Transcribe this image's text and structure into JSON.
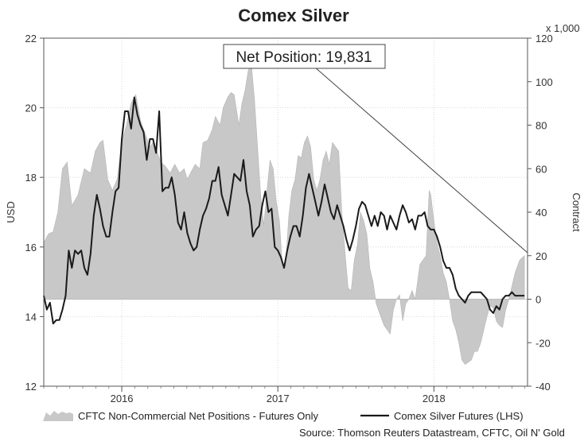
{
  "chart_data": {
    "type": "line",
    "title": "Comex Silver",
    "left_axis": {
      "label": "USD",
      "ylim": [
        12,
        22
      ],
      "ticks": [
        12,
        14,
        16,
        18,
        20,
        22
      ]
    },
    "right_axis": {
      "label": "Contract",
      "unit_label": "x 1,000",
      "ylim": [
        -40,
        120
      ],
      "ticks": [
        -40,
        -20,
        0,
        20,
        40,
        60,
        80,
        100,
        120
      ]
    },
    "x_axis": {
      "range": [
        2015.5,
        2018.6
      ],
      "ticks": [
        {
          "label": "2016",
          "pos": 2016.0
        },
        {
          "label": "2017",
          "pos": 2017.0
        },
        {
          "label": "2018",
          "pos": 2018.0
        }
      ]
    },
    "grid": true,
    "callout": "Net Position: 19,831",
    "series": [
      {
        "name": "CFTC Non-Commercial Net Positions - Futures Only",
        "kind": "area",
        "axis": "right",
        "color": "#c8c8c8",
        "points": [
          [
            2015.5,
            26
          ],
          [
            2015.53,
            30
          ],
          [
            2015.56,
            31
          ],
          [
            2015.59,
            40
          ],
          [
            2015.62,
            60
          ],
          [
            2015.65,
            63
          ],
          [
            2015.68,
            43
          ],
          [
            2015.72,
            48
          ],
          [
            2015.76,
            60
          ],
          [
            2015.8,
            58
          ],
          [
            2015.83,
            68
          ],
          [
            2015.86,
            72
          ],
          [
            2015.88,
            73
          ],
          [
            2015.91,
            55
          ],
          [
            2015.94,
            50
          ],
          [
            2015.97,
            55
          ],
          [
            2016.0,
            72
          ],
          [
            2016.03,
            80
          ],
          [
            2016.06,
            90
          ],
          [
            2016.09,
            94
          ],
          [
            2016.12,
            82
          ],
          [
            2016.15,
            76
          ],
          [
            2016.18,
            70
          ],
          [
            2016.2,
            72
          ],
          [
            2016.22,
            69
          ],
          [
            2016.25,
            63
          ],
          [
            2016.28,
            61
          ],
          [
            2016.31,
            58
          ],
          [
            2016.34,
            62
          ],
          [
            2016.37,
            58
          ],
          [
            2016.4,
            60
          ],
          [
            2016.42,
            55
          ],
          [
            2016.44,
            58
          ],
          [
            2016.47,
            62
          ],
          [
            2016.5,
            60
          ],
          [
            2016.52,
            72
          ],
          [
            2016.55,
            73
          ],
          [
            2016.58,
            78
          ],
          [
            2016.6,
            84
          ],
          [
            2016.63,
            80
          ],
          [
            2016.65,
            88
          ],
          [
            2016.68,
            93
          ],
          [
            2016.7,
            95
          ],
          [
            2016.72,
            94
          ],
          [
            2016.75,
            80
          ],
          [
            2016.77,
            90
          ],
          [
            2016.79,
            96
          ],
          [
            2016.81,
            105
          ],
          [
            2016.83,
            108
          ],
          [
            2016.85,
            92
          ],
          [
            2016.87,
            70
          ],
          [
            2016.89,
            48
          ],
          [
            2016.91,
            34
          ],
          [
            2016.93,
            50
          ],
          [
            2016.95,
            64
          ],
          [
            2016.97,
            60
          ],
          [
            2016.99,
            45
          ],
          [
            2017.01,
            36
          ],
          [
            2017.03,
            14
          ],
          [
            2017.05,
            16
          ],
          [
            2017.07,
            38
          ],
          [
            2017.09,
            50
          ],
          [
            2017.11,
            55
          ],
          [
            2017.13,
            66
          ],
          [
            2017.15,
            65
          ],
          [
            2017.17,
            72
          ],
          [
            2017.19,
            75
          ],
          [
            2017.21,
            70
          ],
          [
            2017.23,
            55
          ],
          [
            2017.25,
            50
          ],
          [
            2017.27,
            55
          ],
          [
            2017.29,
            64
          ],
          [
            2017.31,
            68
          ],
          [
            2017.33,
            62
          ],
          [
            2017.35,
            72
          ],
          [
            2017.37,
            70
          ],
          [
            2017.39,
            68
          ],
          [
            2017.41,
            40
          ],
          [
            2017.43,
            22
          ],
          [
            2017.45,
            5
          ],
          [
            2017.47,
            4
          ],
          [
            2017.49,
            18
          ],
          [
            2017.51,
            25
          ],
          [
            2017.53,
            40
          ],
          [
            2017.55,
            36
          ],
          [
            2017.57,
            30
          ],
          [
            2017.59,
            14
          ],
          [
            2017.61,
            8
          ],
          [
            2017.63,
            -2
          ],
          [
            2017.66,
            -8
          ],
          [
            2017.68,
            -12
          ],
          [
            2017.7,
            -14
          ],
          [
            2017.72,
            -16
          ],
          [
            2017.74,
            -5
          ],
          [
            2017.76,
            0
          ],
          [
            2017.78,
            2
          ],
          [
            2017.8,
            -10
          ],
          [
            2017.82,
            -2
          ],
          [
            2017.84,
            0
          ],
          [
            2017.86,
            4
          ],
          [
            2017.88,
            0
          ],
          [
            2017.91,
            16
          ],
          [
            2017.93,
            18
          ],
          [
            2017.95,
            20
          ],
          [
            2017.97,
            50
          ],
          [
            2017.98,
            48
          ],
          [
            2018.0,
            36
          ],
          [
            2018.02,
            26
          ],
          [
            2018.04,
            20
          ],
          [
            2018.06,
            12
          ],
          [
            2018.08,
            8
          ],
          [
            2018.1,
            0
          ],
          [
            2018.12,
            -10
          ],
          [
            2018.14,
            -14
          ],
          [
            2018.16,
            -20
          ],
          [
            2018.18,
            -28
          ],
          [
            2018.2,
            -30
          ],
          [
            2018.22,
            -29
          ],
          [
            2018.24,
            -28
          ],
          [
            2018.26,
            -24
          ],
          [
            2018.28,
            -24
          ],
          [
            2018.3,
            -20
          ],
          [
            2018.32,
            -14
          ],
          [
            2018.34,
            -8
          ],
          [
            2018.36,
            -3
          ],
          [
            2018.38,
            -4
          ],
          [
            2018.4,
            -10
          ],
          [
            2018.42,
            -12
          ],
          [
            2018.44,
            -13
          ],
          [
            2018.46,
            -5
          ],
          [
            2018.48,
            0
          ],
          [
            2018.5,
            6
          ],
          [
            2018.52,
            12
          ],
          [
            2018.55,
            18
          ],
          [
            2018.58,
            20
          ]
        ]
      },
      {
        "name": "Comex Silver Futures (LHS)",
        "kind": "line",
        "axis": "left",
        "color": "#1a1a1a",
        "points": [
          [
            2015.5,
            14.6
          ],
          [
            2015.52,
            14.2
          ],
          [
            2015.54,
            14.4
          ],
          [
            2015.56,
            13.8
          ],
          [
            2015.58,
            13.9
          ],
          [
            2015.6,
            13.9
          ],
          [
            2015.62,
            14.2
          ],
          [
            2015.64,
            14.6
          ],
          [
            2015.66,
            15.9
          ],
          [
            2015.68,
            15.4
          ],
          [
            2015.7,
            15.9
          ],
          [
            2015.72,
            15.8
          ],
          [
            2015.74,
            15.9
          ],
          [
            2015.76,
            15.4
          ],
          [
            2015.78,
            15.2
          ],
          [
            2015.8,
            15.8
          ],
          [
            2015.82,
            16.9
          ],
          [
            2015.84,
            17.5
          ],
          [
            2015.86,
            17.1
          ],
          [
            2015.88,
            16.6
          ],
          [
            2015.9,
            16.3
          ],
          [
            2015.92,
            16.3
          ],
          [
            2015.94,
            17.0
          ],
          [
            2015.96,
            17.6
          ],
          [
            2015.98,
            17.7
          ],
          [
            2016.0,
            19.1
          ],
          [
            2016.02,
            19.9
          ],
          [
            2016.04,
            19.9
          ],
          [
            2016.06,
            19.4
          ],
          [
            2016.08,
            20.3
          ],
          [
            2016.1,
            19.8
          ],
          [
            2016.12,
            19.5
          ],
          [
            2016.14,
            19.3
          ],
          [
            2016.16,
            18.5
          ],
          [
            2016.18,
            19.1
          ],
          [
            2016.2,
            19.1
          ],
          [
            2016.22,
            18.7
          ],
          [
            2016.24,
            19.9
          ],
          [
            2016.26,
            17.6
          ],
          [
            2016.28,
            17.7
          ],
          [
            2016.3,
            17.7
          ],
          [
            2016.32,
            18.0
          ],
          [
            2016.34,
            17.5
          ],
          [
            2016.36,
            16.7
          ],
          [
            2016.38,
            16.5
          ],
          [
            2016.4,
            17.0
          ],
          [
            2016.42,
            16.4
          ],
          [
            2016.44,
            16.1
          ],
          [
            2016.46,
            15.9
          ],
          [
            2016.48,
            16.0
          ],
          [
            2016.5,
            16.5
          ],
          [
            2016.52,
            16.9
          ],
          [
            2016.54,
            17.1
          ],
          [
            2016.56,
            17.4
          ],
          [
            2016.58,
            17.9
          ],
          [
            2016.6,
            17.9
          ],
          [
            2016.62,
            18.3
          ],
          [
            2016.64,
            17.5
          ],
          [
            2016.66,
            17.2
          ],
          [
            2016.68,
            16.9
          ],
          [
            2016.7,
            17.5
          ],
          [
            2016.72,
            18.1
          ],
          [
            2016.74,
            18.0
          ],
          [
            2016.76,
            17.9
          ],
          [
            2016.78,
            18.5
          ],
          [
            2016.8,
            17.6
          ],
          [
            2016.82,
            17.2
          ],
          [
            2016.84,
            16.3
          ],
          [
            2016.86,
            16.5
          ],
          [
            2016.88,
            16.6
          ],
          [
            2016.9,
            17.2
          ],
          [
            2016.92,
            17.6
          ],
          [
            2016.94,
            17.0
          ],
          [
            2016.96,
            17.1
          ],
          [
            2016.98,
            16.0
          ],
          [
            2017.0,
            15.9
          ],
          [
            2017.02,
            15.7
          ],
          [
            2017.04,
            15.4
          ],
          [
            2017.06,
            15.9
          ],
          [
            2017.08,
            16.3
          ],
          [
            2017.1,
            16.6
          ],
          [
            2017.12,
            16.6
          ],
          [
            2017.14,
            16.3
          ],
          [
            2017.16,
            16.9
          ],
          [
            2017.18,
            17.7
          ],
          [
            2017.2,
            18.1
          ],
          [
            2017.22,
            17.7
          ],
          [
            2017.24,
            17.3
          ],
          [
            2017.26,
            16.9
          ],
          [
            2017.28,
            17.3
          ],
          [
            2017.3,
            17.8
          ],
          [
            2017.32,
            17.4
          ],
          [
            2017.34,
            17.0
          ],
          [
            2017.36,
            16.8
          ],
          [
            2017.38,
            17.2
          ],
          [
            2017.4,
            16.9
          ],
          [
            2017.42,
            16.6
          ],
          [
            2017.44,
            16.2
          ],
          [
            2017.46,
            15.9
          ],
          [
            2017.48,
            16.2
          ],
          [
            2017.5,
            16.6
          ],
          [
            2017.52,
            17.1
          ],
          [
            2017.54,
            17.3
          ],
          [
            2017.56,
            17.2
          ],
          [
            2017.58,
            16.9
          ],
          [
            2017.6,
            16.6
          ],
          [
            2017.62,
            16.9
          ],
          [
            2017.64,
            16.6
          ],
          [
            2017.66,
            17.0
          ],
          [
            2017.68,
            16.9
          ],
          [
            2017.7,
            16.5
          ],
          [
            2017.72,
            16.9
          ],
          [
            2017.74,
            16.7
          ],
          [
            2017.76,
            16.5
          ],
          [
            2017.78,
            16.9
          ],
          [
            2017.8,
            17.2
          ],
          [
            2017.82,
            17.0
          ],
          [
            2017.84,
            16.7
          ],
          [
            2017.86,
            16.8
          ],
          [
            2017.88,
            16.5
          ],
          [
            2017.9,
            16.9
          ],
          [
            2017.92,
            16.9
          ],
          [
            2017.94,
            17.0
          ],
          [
            2017.96,
            16.6
          ],
          [
            2017.98,
            16.5
          ],
          [
            2018.0,
            16.5
          ],
          [
            2018.02,
            16.3
          ],
          [
            2018.04,
            16.0
          ],
          [
            2018.06,
            15.6
          ],
          [
            2018.08,
            15.4
          ],
          [
            2018.1,
            15.4
          ],
          [
            2018.12,
            15.2
          ],
          [
            2018.14,
            14.8
          ],
          [
            2018.16,
            14.6
          ],
          [
            2018.18,
            14.5
          ],
          [
            2018.2,
            14.4
          ],
          [
            2018.22,
            14.6
          ],
          [
            2018.24,
            14.7
          ],
          [
            2018.26,
            14.7
          ],
          [
            2018.28,
            14.7
          ],
          [
            2018.3,
            14.7
          ],
          [
            2018.32,
            14.6
          ],
          [
            2018.34,
            14.5
          ],
          [
            2018.36,
            14.2
          ],
          [
            2018.38,
            14.1
          ],
          [
            2018.4,
            14.3
          ],
          [
            2018.42,
            14.2
          ],
          [
            2018.44,
            14.5
          ],
          [
            2018.46,
            14.6
          ],
          [
            2018.48,
            14.6
          ],
          [
            2018.5,
            14.7
          ],
          [
            2018.52,
            14.6
          ],
          [
            2018.55,
            14.6
          ],
          [
            2018.58,
            14.6
          ]
        ]
      }
    ]
  },
  "source": "Source: Thomson Reuters Datastream, CFTC, Oil N' Gold"
}
